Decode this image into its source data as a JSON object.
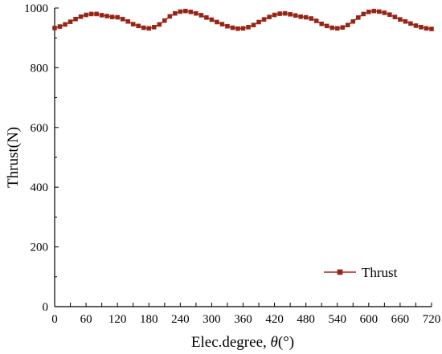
{
  "chart_data": {
    "type": "line",
    "title": "",
    "xlabel_prefix": "Elec.degree, ",
    "xlabel_symbol": "θ",
    "xlabel_suffix": "(°)",
    "ylabel": "Thrust(N)",
    "xlim": [
      0,
      720
    ],
    "ylim": [
      0,
      1000
    ],
    "xticks": [
      "0",
      "30",
      "60",
      "90",
      "120",
      "150",
      "180",
      "210",
      "240",
      "270",
      "300",
      "330",
      "360",
      "390",
      "420",
      "450",
      "480",
      "510",
      "540",
      "570",
      "600",
      "630",
      "660",
      "690",
      "720"
    ],
    "yticks": [
      "0",
      "200",
      "400",
      "600",
      "800",
      "1000"
    ],
    "grid": false,
    "legend_position": "bottom-right",
    "colors": {
      "line": "#b22222",
      "marker": "#8b2a12",
      "axis": "#000000"
    },
    "series": [
      {
        "name": "Thrust",
        "x": [
          0,
          10,
          20,
          30,
          40,
          50,
          60,
          70,
          80,
          90,
          100,
          110,
          120,
          130,
          140,
          150,
          160,
          170,
          180,
          190,
          200,
          210,
          220,
          230,
          240,
          250,
          260,
          270,
          280,
          290,
          300,
          310,
          320,
          330,
          340,
          350,
          360,
          370,
          380,
          390,
          400,
          410,
          420,
          430,
          440,
          450,
          460,
          470,
          480,
          490,
          500,
          510,
          520,
          530,
          540,
          550,
          560,
          570,
          580,
          590,
          600,
          610,
          620,
          630,
          640,
          650,
          660,
          670,
          680,
          690,
          700,
          710,
          720
        ],
        "values": [
          933,
          938,
          945,
          954,
          963,
          971,
          977,
          980,
          980,
          976,
          973,
          970,
          969,
          963,
          955,
          946,
          940,
          934,
          932,
          936,
          945,
          958,
          972,
          982,
          988,
          990,
          987,
          982,
          976,
          968,
          961,
          953,
          946,
          939,
          934,
          931,
          932,
          936,
          943,
          953,
          962,
          970,
          977,
          981,
          982,
          979,
          975,
          971,
          969,
          965,
          957,
          947,
          940,
          934,
          932,
          935,
          943,
          955,
          968,
          980,
          987,
          990,
          988,
          984,
          978,
          970,
          962,
          955,
          948,
          941,
          936,
          932,
          930
        ]
      }
    ]
  }
}
